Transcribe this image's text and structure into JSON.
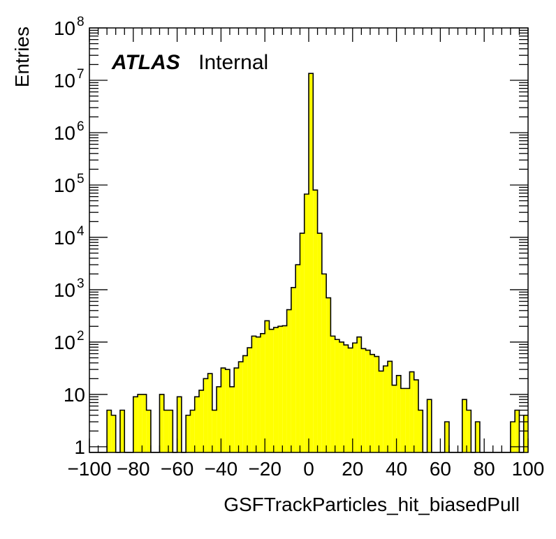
{
  "chart_data": {
    "type": "histogram",
    "title": "",
    "atlas_label": "ATLAS",
    "atlas_sublabel": "Internal",
    "xlabel": "GSFTrackParticles_hit_biasedPull",
    "ylabel": "Entries",
    "xlim": [
      -100,
      100
    ],
    "ylim": [
      0.78,
      100000000
    ],
    "y_scale": "log",
    "grid": false,
    "bin_width": 2,
    "fill_color": "#ffff00",
    "line_color": "#000000",
    "x_tick_labels": [
      "−100",
      "−80",
      "−60",
      "−40",
      "−20",
      "0",
      "20",
      "40",
      "60",
      "80",
      "100"
    ],
    "x_tick_values": [
      -100,
      -80,
      -60,
      -40,
      -20,
      0,
      20,
      40,
      60,
      80,
      100
    ],
    "y_ticks": [
      {
        "value": 1,
        "base": "1",
        "exp": ""
      },
      {
        "value": 10,
        "base": "10",
        "exp": ""
      },
      {
        "value": 100,
        "base": "10",
        "exp": "2"
      },
      {
        "value": 1000,
        "base": "10",
        "exp": "3"
      },
      {
        "value": 10000,
        "base": "10",
        "exp": "4"
      },
      {
        "value": 100000,
        "base": "10",
        "exp": "5"
      },
      {
        "value": 1000000,
        "base": "10",
        "exp": "6"
      },
      {
        "value": 10000000,
        "base": "10",
        "exp": "7"
      },
      {
        "value": 100000000,
        "base": "10",
        "exp": "8"
      }
    ],
    "bin_low_edges": [
      -100,
      -98,
      -96,
      -94,
      -92,
      -90,
      -88,
      -86,
      -84,
      -82,
      -80,
      -78,
      -76,
      -74,
      -72,
      -70,
      -68,
      -66,
      -64,
      -62,
      -60,
      -58,
      -56,
      -54,
      -52,
      -50,
      -48,
      -46,
      -44,
      -42,
      -40,
      -38,
      -36,
      -34,
      -32,
      -30,
      -28,
      -26,
      -24,
      -22,
      -20,
      -18,
      -16,
      -14,
      -12,
      -10,
      -8,
      -6,
      -4,
      -2,
      0,
      2,
      4,
      6,
      8,
      10,
      12,
      14,
      16,
      18,
      20,
      22,
      24,
      26,
      28,
      30,
      32,
      34,
      36,
      38,
      40,
      42,
      44,
      46,
      48,
      50,
      52,
      54,
      56,
      58,
      60,
      62,
      64,
      66,
      68,
      70,
      72,
      74,
      76,
      78,
      80,
      82,
      84,
      86,
      88,
      90,
      92,
      94,
      96,
      98
    ],
    "values": [
      0,
      0,
      0,
      0,
      5,
      4,
      0,
      5,
      0,
      0,
      9,
      10,
      10,
      5,
      0,
      0,
      10,
      5,
      5,
      0,
      9,
      0,
      4,
      5,
      9,
      12,
      20,
      25,
      5,
      14,
      32,
      30,
      14,
      32,
      42,
      55,
      78,
      130,
      125,
      145,
      255,
      175,
      190,
      200,
      205,
      415,
      1100,
      3000,
      12000,
      67000,
      13500000,
      80000,
      12000,
      2000,
      700,
      130,
      112,
      100,
      88,
      77,
      96,
      125,
      75,
      70,
      58,
      53,
      28,
      35,
      43,
      15,
      23,
      13,
      13,
      27,
      19,
      5,
      0,
      8,
      0,
      0,
      0,
      3,
      0,
      0,
      0,
      8,
      5,
      0,
      3,
      0,
      0,
      0,
      0,
      0,
      0,
      0,
      3,
      5,
      0,
      4
    ]
  }
}
